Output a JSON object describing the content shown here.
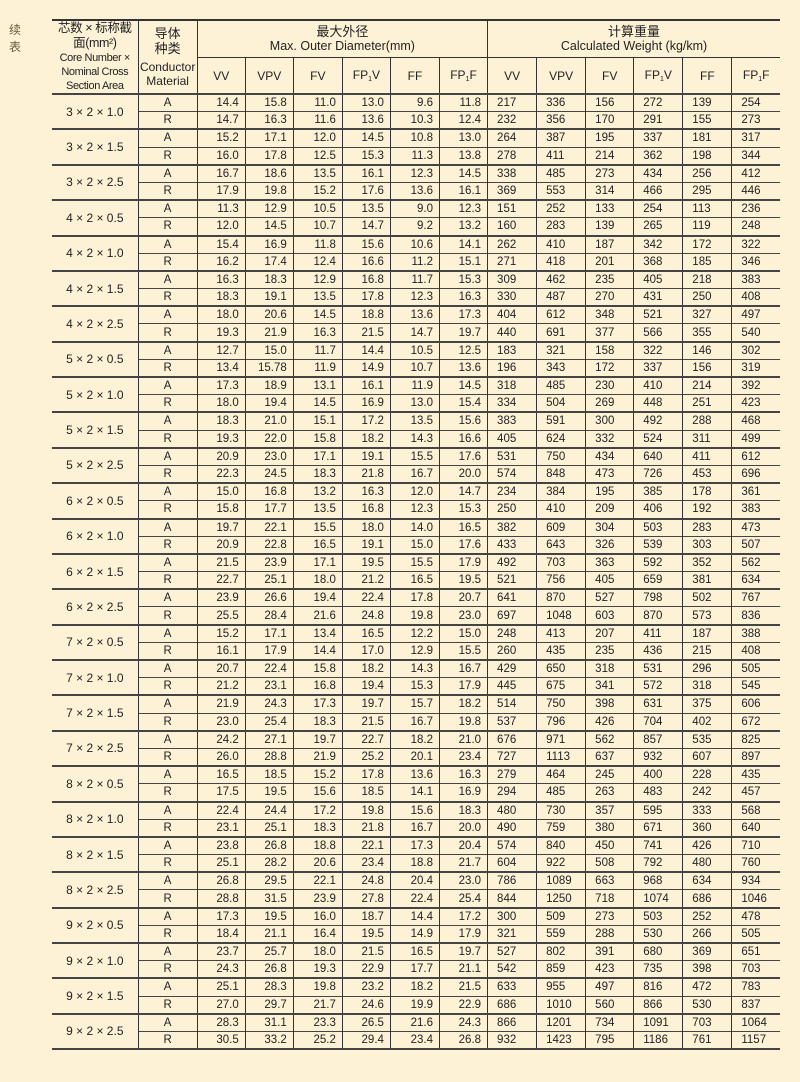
{
  "side_label": "续 表",
  "header": {
    "col1_zh": "芯数 × 标称截面(mm²)",
    "col1_en": "Core Number × Nominal Cross Section Area",
    "col2_zh": "导体种类",
    "col2_en": "Conductor Material",
    "diameter_zh": "最大外径",
    "diameter_en": "Max. Outer Diameter(mm)",
    "weight_zh": "计算重量",
    "weight_en": "Calculated Weight  (kg/km)",
    "types": [
      "VV",
      "VPV",
      "FV",
      "FP1V",
      "FF",
      "FP1F"
    ]
  },
  "groups": [
    {
      "spec": "3 × 2 × 1.0",
      "rows": [
        [
          "A",
          "14.4",
          "15.8",
          "11.0",
          "13.0",
          "9.6",
          "11.8",
          "217",
          "336",
          "156",
          "272",
          "139",
          "254"
        ],
        [
          "R",
          "14.7",
          "16.3",
          "11.6",
          "13.6",
          "10.3",
          "12.4",
          "232",
          "356",
          "170",
          "291",
          "155",
          "273"
        ]
      ]
    },
    {
      "spec": "3 × 2 × 1.5",
      "rows": [
        [
          "A",
          "15.2",
          "17.1",
          "12.0",
          "14.5",
          "10.8",
          "13.0",
          "264",
          "387",
          "195",
          "337",
          "181",
          "317"
        ],
        [
          "R",
          "16.0",
          "17.8",
          "12.5",
          "15.3",
          "11.3",
          "13.8",
          "278",
          "411",
          "214",
          "362",
          "198",
          "344"
        ]
      ]
    },
    {
      "spec": "3 × 2 × 2.5",
      "rows": [
        [
          "A",
          "16.7",
          "18.6",
          "13.5",
          "16.1",
          "12.3",
          "14.5",
          "338",
          "485",
          "273",
          "434",
          "256",
          "412"
        ],
        [
          "R",
          "17.9",
          "19.8",
          "15.2",
          "17.6",
          "13.6",
          "16.1",
          "369",
          "553",
          "314",
          "466",
          "295",
          "446"
        ]
      ]
    },
    {
      "spec": "4 × 2 × 0.5",
      "rows": [
        [
          "A",
          "11.3",
          "12.9",
          "10.5",
          "13.5",
          "9.0",
          "12.3",
          "151",
          "252",
          "133",
          "254",
          "113",
          "236"
        ],
        [
          "R",
          "12.0",
          "14.5",
          "10.7",
          "14.7",
          "9.2",
          "13.2",
          "160",
          "283",
          "139",
          "265",
          "119",
          "248"
        ]
      ]
    },
    {
      "spec": "4 × 2 × 1.0",
      "rows": [
        [
          "A",
          "15.4",
          "16.9",
          "11.8",
          "15.6",
          "10.6",
          "14.1",
          "262",
          "410",
          "187",
          "342",
          "172",
          "322"
        ],
        [
          "R",
          "16.2",
          "17.4",
          "12.4",
          "16.6",
          "11.2",
          "15.1",
          "271",
          "418",
          "201",
          "368",
          "185",
          "346"
        ]
      ]
    },
    {
      "spec": "4 × 2 × 1.5",
      "rows": [
        [
          "A",
          "16.3",
          "18.3",
          "12.9",
          "16.8",
          "11.7",
          "15.3",
          "309",
          "462",
          "235",
          "405",
          "218",
          "383"
        ],
        [
          "R",
          "18.3",
          "19.1",
          "13.5",
          "17.8",
          "12.3",
          "16.3",
          "330",
          "487",
          "270",
          "431",
          "250",
          "408"
        ]
      ]
    },
    {
      "spec": "4 × 2 × 2.5",
      "rows": [
        [
          "A",
          "18.0",
          "20.6",
          "14.5",
          "18.8",
          "13.6",
          "17.3",
          "404",
          "612",
          "348",
          "521",
          "327",
          "497"
        ],
        [
          "R",
          "19.3",
          "21.9",
          "16.3",
          "21.5",
          "14.7",
          "19.7",
          "440",
          "691",
          "377",
          "566",
          "355",
          "540"
        ]
      ]
    },
    {
      "spec": "5 × 2 × 0.5",
      "rows": [
        [
          "A",
          "12.7",
          "15.0",
          "11.7",
          "14.4",
          "10.5",
          "12.5",
          "183",
          "321",
          "158",
          "322",
          "146",
          "302"
        ],
        [
          "R",
          "13.4",
          "15.78",
          "11.9",
          "14.9",
          "10.7",
          "13.6",
          "196",
          "343",
          "172",
          "337",
          "156",
          "319"
        ]
      ]
    },
    {
      "spec": "5 × 2 × 1.0",
      "rows": [
        [
          "A",
          "17.3",
          "18.9",
          "13.1",
          "16.1",
          "11.9",
          "14.5",
          "318",
          "485",
          "230",
          "410",
          "214",
          "392"
        ],
        [
          "R",
          "18.0",
          "19.4",
          "14.5",
          "16.9",
          "13.0",
          "15.4",
          "334",
          "504",
          "269",
          "448",
          "251",
          "423"
        ]
      ]
    },
    {
      "spec": "5 × 2 × 1.5",
      "rows": [
        [
          "A",
          "18.3",
          "21.0",
          "15.1",
          "17.2",
          "13.5",
          "15.6",
          "383",
          "591",
          "300",
          "492",
          "288",
          "468"
        ],
        [
          "R",
          "19.3",
          "22.0",
          "15.8",
          "18.2",
          "14.3",
          "16.6",
          "405",
          "624",
          "332",
          "524",
          "311",
          "499"
        ]
      ]
    },
    {
      "spec": "5 × 2 × 2.5",
      "rows": [
        [
          "A",
          "20.9",
          "23.0",
          "17.1",
          "19.1",
          "15.5",
          "17.6",
          "531",
          "750",
          "434",
          "640",
          "411",
          "612"
        ],
        [
          "R",
          "22.3",
          "24.5",
          "18.3",
          "21.8",
          "16.7",
          "20.0",
          "574",
          "848",
          "473",
          "726",
          "453",
          "696"
        ]
      ]
    },
    {
      "spec": "6 × 2 × 0.5",
      "rows": [
        [
          "A",
          "15.0",
          "16.8",
          "13.2",
          "16.3",
          "12.0",
          "14.7",
          "234",
          "384",
          "195",
          "385",
          "178",
          "361"
        ],
        [
          "R",
          "15.8",
          "17.7",
          "13.5",
          "16.8",
          "12.3",
          "15.3",
          "250",
          "410",
          "209",
          "406",
          "192",
          "383"
        ]
      ]
    },
    {
      "spec": "6 × 2 × 1.0",
      "rows": [
        [
          "A",
          "19.7",
          "22.1",
          "15.5",
          "18.0",
          "14.0",
          "16.5",
          "382",
          "609",
          "304",
          "503",
          "283",
          "473"
        ],
        [
          "R",
          "20.9",
          "22.8",
          "16.5",
          "19.1",
          "15.0",
          "17.6",
          "433",
          "643",
          "326",
          "539",
          "303",
          "507"
        ]
      ]
    },
    {
      "spec": "6 × 2 × 1.5",
      "rows": [
        [
          "A",
          "21.5",
          "23.9",
          "17.1",
          "19.5",
          "15.5",
          "17.9",
          "492",
          "703",
          "363",
          "592",
          "352",
          "562"
        ],
        [
          "R",
          "22.7",
          "25.1",
          "18.0",
          "21.2",
          "16.5",
          "19.5",
          "521",
          "756",
          "405",
          "659",
          "381",
          "634"
        ]
      ]
    },
    {
      "spec": "6 × 2 × 2.5",
      "rows": [
        [
          "A",
          "23.9",
          "26.6",
          "19.4",
          "22.4",
          "17.8",
          "20.7",
          "641",
          "870",
          "527",
          "798",
          "502",
          "767"
        ],
        [
          "R",
          "25.5",
          "28.4",
          "21.6",
          "24.8",
          "19.8",
          "23.0",
          "697",
          "1048",
          "603",
          "870",
          "573",
          "836"
        ]
      ]
    },
    {
      "spec": "7 × 2 × 0.5",
      "rows": [
        [
          "A",
          "15.2",
          "17.1",
          "13.4",
          "16.5",
          "12.2",
          "15.0",
          "248",
          "413",
          "207",
          "411",
          "187",
          "388"
        ],
        [
          "R",
          "16.1",
          "17.9",
          "14.4",
          "17.0",
          "12.9",
          "15.5",
          "260",
          "435",
          "235",
          "436",
          "215",
          "408"
        ]
      ]
    },
    {
      "spec": "7 × 2 × 1.0",
      "rows": [
        [
          "A",
          "20.7",
          "22.4",
          "15.8",
          "18.2",
          "14.3",
          "16.7",
          "429",
          "650",
          "318",
          "531",
          "296",
          "505"
        ],
        [
          "R",
          "21.2",
          "23.1",
          "16.8",
          "19.4",
          "15.3",
          "17.9",
          "445",
          "675",
          "341",
          "572",
          "318",
          "545"
        ]
      ]
    },
    {
      "spec": "7 × 2 × 1.5",
      "rows": [
        [
          "A",
          "21.9",
          "24.3",
          "17.3",
          "19.7",
          "15.7",
          "18.2",
          "514",
          "750",
          "398",
          "631",
          "375",
          "606"
        ],
        [
          "R",
          "23.0",
          "25.4",
          "18.3",
          "21.5",
          "16.7",
          "19.8",
          "537",
          "796",
          "426",
          "704",
          "402",
          "672"
        ]
      ]
    },
    {
      "spec": "7 × 2 × 2.5",
      "rows": [
        [
          "A",
          "24.2",
          "27.1",
          "19.7",
          "22.7",
          "18.2",
          "21.0",
          "676",
          "971",
          "562",
          "857",
          "535",
          "825"
        ],
        [
          "R",
          "26.0",
          "28.8",
          "21.9",
          "25.2",
          "20.1",
          "23.4",
          "727",
          "1113",
          "637",
          "932",
          "607",
          "897"
        ]
      ]
    },
    {
      "spec": "8 × 2 × 0.5",
      "rows": [
        [
          "A",
          "16.5",
          "18.5",
          "15.2",
          "17.8",
          "13.6",
          "16.3",
          "279",
          "464",
          "245",
          "400",
          "228",
          "435"
        ],
        [
          "R",
          "17.5",
          "19.5",
          "15.6",
          "18.5",
          "14.1",
          "16.9",
          "294",
          "485",
          "263",
          "483",
          "242",
          "457"
        ]
      ]
    },
    {
      "spec": "8 × 2 × 1.0",
      "rows": [
        [
          "A",
          "22.4",
          "24.4",
          "17.2",
          "19.8",
          "15.6",
          "18.3",
          "480",
          "730",
          "357",
          "595",
          "333",
          "568"
        ],
        [
          "R",
          "23.1",
          "25.1",
          "18.3",
          "21.8",
          "16.7",
          "20.0",
          "490",
          "759",
          "380",
          "671",
          "360",
          "640"
        ]
      ]
    },
    {
      "spec": "8 × 2 × 1.5",
      "rows": [
        [
          "A",
          "23.8",
          "26.8",
          "18.8",
          "22.1",
          "17.3",
          "20.4",
          "574",
          "840",
          "450",
          "741",
          "426",
          "710"
        ],
        [
          "R",
          "25.1",
          "28.2",
          "20.6",
          "23.4",
          "18.8",
          "21.7",
          "604",
          "922",
          "508",
          "792",
          "480",
          "760"
        ]
      ]
    },
    {
      "spec": "8 × 2 × 2.5",
      "rows": [
        [
          "A",
          "26.8",
          "29.5",
          "22.1",
          "24.8",
          "20.4",
          "23.0",
          "786",
          "1089",
          "663",
          "968",
          "634",
          "934"
        ],
        [
          "R",
          "28.8",
          "31.5",
          "23.9",
          "27.8",
          "22.4",
          "25.4",
          "844",
          "1250",
          "718",
          "1074",
          "686",
          "1046"
        ]
      ]
    },
    {
      "spec": "9 × 2 × 0.5",
      "rows": [
        [
          "A",
          "17.3",
          "19.5",
          "16.0",
          "18.7",
          "14.4",
          "17.2",
          "300",
          "509",
          "273",
          "503",
          "252",
          "478"
        ],
        [
          "R",
          "18.4",
          "21.1",
          "16.4",
          "19.5",
          "14.9",
          "17.9",
          "321",
          "559",
          "288",
          "530",
          "266",
          "505"
        ]
      ]
    },
    {
      "spec": "9 × 2 × 1.0",
      "rows": [
        [
          "A",
          "23.7",
          "25.7",
          "18.0",
          "21.5",
          "16.5",
          "19.7",
          "527",
          "802",
          "391",
          "680",
          "369",
          "651"
        ],
        [
          "R",
          "24.3",
          "26.8",
          "19.3",
          "22.9",
          "17.7",
          "21.1",
          "542",
          "859",
          "423",
          "735",
          "398",
          "703"
        ]
      ]
    },
    {
      "spec": "9 × 2 × 1.5",
      "rows": [
        [
          "A",
          "25.1",
          "28.3",
          "19.8",
          "23.2",
          "18.2",
          "21.5",
          "633",
          "955",
          "497",
          "816",
          "472",
          "783"
        ],
        [
          "R",
          "27.0",
          "29.7",
          "21.7",
          "24.6",
          "19.9",
          "22.9",
          "686",
          "1010",
          "560",
          "866",
          "530",
          "837"
        ]
      ]
    },
    {
      "spec": "9 × 2 × 2.5",
      "rows": [
        [
          "A",
          "28.3",
          "31.1",
          "23.3",
          "26.5",
          "21.6",
          "24.3",
          "866",
          "1201",
          "734",
          "1091",
          "703",
          "1064"
        ],
        [
          "R",
          "30.5",
          "33.2",
          "25.2",
          "29.4",
          "23.4",
          "26.8",
          "932",
          "1423",
          "795",
          "1186",
          "761",
          "1157"
        ]
      ]
    }
  ]
}
